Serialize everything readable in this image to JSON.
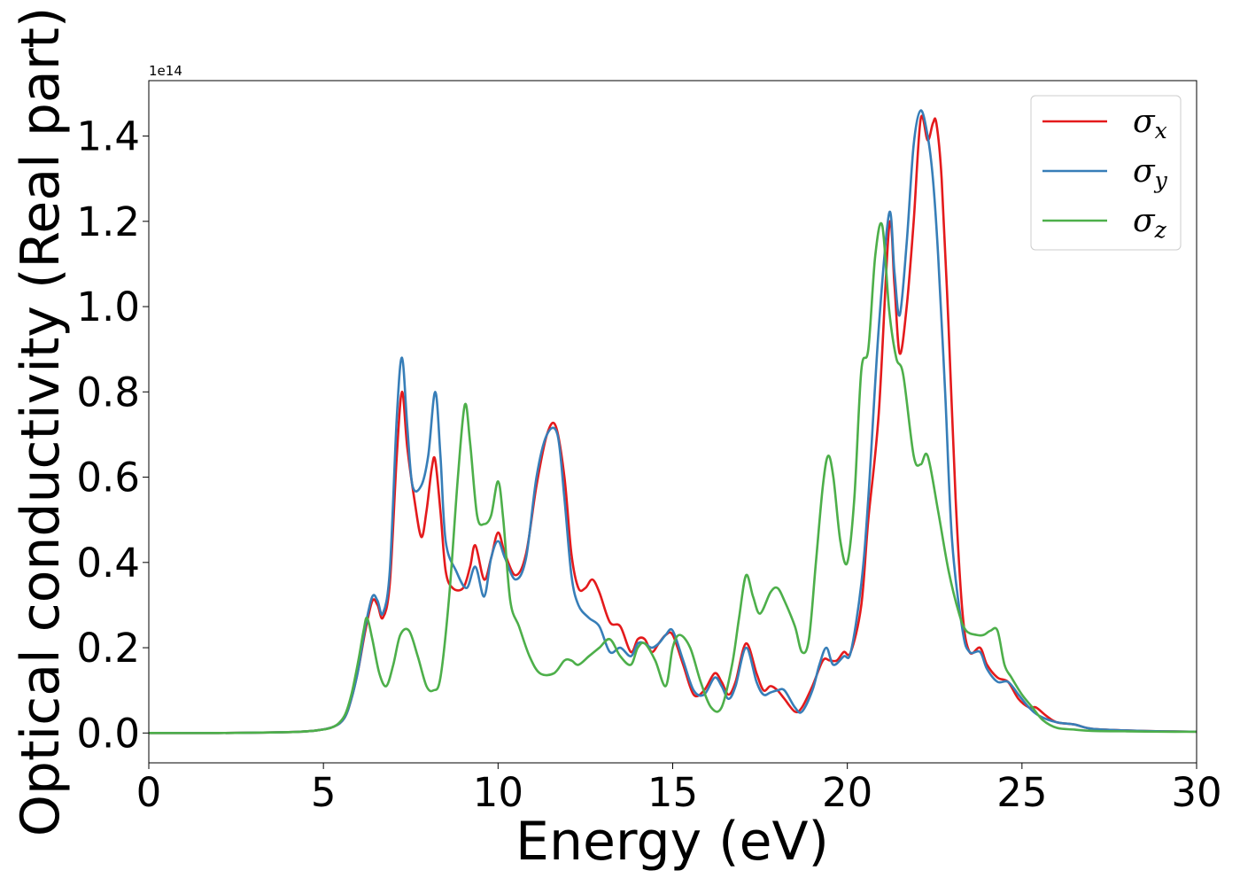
{
  "chart_data": {
    "type": "line",
    "xlabel": "Energy (eV)",
    "ylabel": "Optical conductivity (Real part)",
    "y_offset_text": "1e14",
    "xlim": [
      0,
      30
    ],
    "ylim": [
      -0.07,
      1.53
    ],
    "y_scale_factor": 100000000000000.0,
    "grid": false,
    "legend_position": "top-right",
    "x_ticks": [
      0,
      5,
      10,
      15,
      20,
      25,
      30
    ],
    "x_tick_labels": [
      "0",
      "5",
      "10",
      "15",
      "20",
      "25",
      "30"
    ],
    "y_ticks": [
      0.0,
      0.2,
      0.4,
      0.6,
      0.8,
      1.0,
      1.2,
      1.4
    ],
    "y_tick_labels": [
      "0.0",
      "0.2",
      "0.4",
      "0.6",
      "0.8",
      "1.0",
      "1.2",
      "1.4"
    ],
    "series": [
      {
        "name": "σx",
        "legend_base": "σ",
        "legend_sub": "x",
        "color": "#e41a1c",
        "x": [
          0,
          2,
          4,
          4.8,
          5.3,
          5.6,
          5.8,
          6.0,
          6.2,
          6.4,
          6.55,
          6.7,
          6.9,
          7.1,
          7.25,
          7.4,
          7.6,
          7.8,
          7.95,
          8.1,
          8.2,
          8.35,
          8.5,
          8.7,
          9.0,
          9.2,
          9.35,
          9.6,
          9.8,
          10.0,
          10.2,
          10.5,
          10.8,
          11.1,
          11.4,
          11.65,
          11.9,
          12.1,
          12.3,
          12.5,
          12.7,
          12.9,
          13.2,
          13.5,
          13.8,
          14.0,
          14.2,
          14.4,
          14.6,
          14.8,
          15.0,
          15.3,
          15.6,
          15.9,
          16.2,
          16.4,
          16.6,
          16.8,
          17.1,
          17.4,
          17.6,
          17.8,
          18.0,
          18.2,
          18.5,
          18.7,
          19.0,
          19.3,
          19.5,
          19.7,
          19.9,
          20.1,
          20.4,
          20.6,
          20.9,
          21.2,
          21.35,
          21.5,
          21.7,
          21.9,
          22.1,
          22.3,
          22.45,
          22.55,
          22.7,
          22.9,
          23.1,
          23.3,
          23.5,
          23.8,
          24.0,
          24.3,
          24.6,
          24.9,
          25.2,
          25.4,
          25.7,
          26.0,
          26.5,
          27.0,
          28.0,
          29.0,
          30.0
        ],
        "y": [
          0,
          0,
          0.002,
          0.006,
          0.015,
          0.035,
          0.08,
          0.15,
          0.24,
          0.31,
          0.3,
          0.27,
          0.35,
          0.65,
          0.8,
          0.67,
          0.55,
          0.46,
          0.52,
          0.62,
          0.64,
          0.52,
          0.38,
          0.34,
          0.34,
          0.39,
          0.44,
          0.36,
          0.41,
          0.47,
          0.42,
          0.37,
          0.42,
          0.58,
          0.7,
          0.72,
          0.6,
          0.42,
          0.34,
          0.34,
          0.36,
          0.33,
          0.26,
          0.25,
          0.19,
          0.22,
          0.22,
          0.19,
          0.21,
          0.23,
          0.23,
          0.16,
          0.09,
          0.1,
          0.14,
          0.12,
          0.09,
          0.12,
          0.21,
          0.14,
          0.1,
          0.11,
          0.1,
          0.08,
          0.05,
          0.06,
          0.11,
          0.17,
          0.17,
          0.17,
          0.19,
          0.19,
          0.3,
          0.5,
          0.75,
          1.19,
          1.05,
          0.89,
          1.0,
          1.2,
          1.44,
          1.39,
          1.43,
          1.43,
          1.3,
          0.95,
          0.55,
          0.28,
          0.19,
          0.2,
          0.16,
          0.13,
          0.12,
          0.08,
          0.06,
          0.06,
          0.04,
          0.025,
          0.02,
          0.01,
          0.006,
          0.004,
          0.003
        ]
      },
      {
        "name": "σy",
        "legend_base": "σ",
        "legend_sub": "y",
        "color": "#377eb8",
        "x": [
          0,
          2,
          4,
          4.8,
          5.3,
          5.6,
          5.8,
          6.0,
          6.2,
          6.4,
          6.55,
          6.7,
          6.9,
          7.1,
          7.25,
          7.4,
          7.55,
          7.8,
          8.0,
          8.2,
          8.35,
          8.5,
          8.8,
          9.1,
          9.35,
          9.6,
          9.8,
          10.0,
          10.2,
          10.5,
          10.8,
          11.1,
          11.4,
          11.7,
          11.9,
          12.1,
          12.3,
          12.6,
          12.9,
          13.2,
          13.5,
          13.8,
          14.0,
          14.2,
          14.4,
          14.6,
          14.8,
          15.0,
          15.3,
          15.6,
          15.9,
          16.2,
          16.4,
          16.6,
          16.8,
          17.1,
          17.4,
          17.6,
          17.8,
          18.0,
          18.2,
          18.5,
          18.7,
          19.0,
          19.2,
          19.4,
          19.6,
          19.9,
          20.1,
          20.4,
          20.6,
          20.9,
          21.2,
          21.35,
          21.5,
          21.7,
          21.9,
          22.1,
          22.3,
          22.45,
          22.6,
          22.8,
          23.0,
          23.3,
          23.5,
          23.8,
          24.0,
          24.3,
          24.6,
          24.9,
          25.2,
          25.5,
          26.0,
          26.5,
          27.0,
          28.0,
          29.0,
          30.0
        ],
        "y": [
          0,
          0,
          0.002,
          0.006,
          0.015,
          0.035,
          0.08,
          0.15,
          0.25,
          0.32,
          0.31,
          0.28,
          0.38,
          0.74,
          0.88,
          0.72,
          0.58,
          0.58,
          0.65,
          0.8,
          0.65,
          0.45,
          0.38,
          0.34,
          0.39,
          0.32,
          0.41,
          0.45,
          0.41,
          0.36,
          0.41,
          0.6,
          0.7,
          0.7,
          0.55,
          0.37,
          0.3,
          0.27,
          0.25,
          0.19,
          0.2,
          0.18,
          0.21,
          0.21,
          0.2,
          0.21,
          0.23,
          0.24,
          0.17,
          0.1,
          0.09,
          0.13,
          0.11,
          0.08,
          0.11,
          0.2,
          0.12,
          0.09,
          0.095,
          0.1,
          0.1,
          0.06,
          0.05,
          0.1,
          0.16,
          0.2,
          0.16,
          0.18,
          0.19,
          0.35,
          0.55,
          0.95,
          1.22,
          1.08,
          0.98,
          1.15,
          1.38,
          1.46,
          1.4,
          1.3,
          1.12,
          0.8,
          0.45,
          0.24,
          0.19,
          0.19,
          0.15,
          0.12,
          0.12,
          0.09,
          0.06,
          0.04,
          0.025,
          0.02,
          0.01,
          0.006,
          0.004,
          0.003
        ]
      },
      {
        "name": "σz",
        "legend_base": "σ",
        "legend_sub": "z",
        "color": "#4daf4a",
        "x": [
          0,
          2,
          4,
          4.8,
          5.3,
          5.6,
          5.8,
          6.0,
          6.15,
          6.25,
          6.4,
          6.6,
          6.8,
          7.0,
          7.2,
          7.45,
          7.7,
          7.95,
          8.15,
          8.35,
          8.6,
          8.85,
          9.05,
          9.2,
          9.4,
          9.6,
          9.8,
          10.0,
          10.15,
          10.35,
          10.6,
          10.9,
          11.2,
          11.6,
          11.9,
          12.1,
          12.3,
          12.6,
          12.9,
          13.2,
          13.5,
          13.8,
          14.0,
          14.2,
          14.5,
          14.8,
          15.0,
          15.2,
          15.5,
          15.8,
          16.1,
          16.4,
          16.7,
          16.9,
          17.1,
          17.3,
          17.5,
          17.8,
          18.0,
          18.2,
          18.5,
          18.7,
          18.9,
          19.1,
          19.3,
          19.45,
          19.6,
          19.8,
          20.0,
          20.2,
          20.4,
          20.6,
          20.8,
          21.0,
          21.2,
          21.4,
          21.6,
          21.9,
          22.1,
          22.3,
          22.6,
          22.9,
          23.2,
          23.4,
          23.7,
          23.9,
          24.1,
          24.3,
          24.5,
          24.7,
          25.0,
          25.3,
          25.6,
          26.0,
          26.5,
          27.0,
          28.0,
          29.0,
          30.0
        ],
        "y": [
          0,
          0,
          0.002,
          0.006,
          0.015,
          0.04,
          0.09,
          0.17,
          0.24,
          0.27,
          0.22,
          0.14,
          0.11,
          0.16,
          0.23,
          0.24,
          0.18,
          0.11,
          0.1,
          0.13,
          0.32,
          0.6,
          0.77,
          0.68,
          0.51,
          0.49,
          0.51,
          0.59,
          0.5,
          0.31,
          0.25,
          0.18,
          0.14,
          0.14,
          0.17,
          0.17,
          0.16,
          0.18,
          0.2,
          0.22,
          0.18,
          0.16,
          0.2,
          0.21,
          0.17,
          0.11,
          0.2,
          0.23,
          0.2,
          0.12,
          0.06,
          0.06,
          0.16,
          0.27,
          0.37,
          0.32,
          0.28,
          0.33,
          0.34,
          0.31,
          0.25,
          0.19,
          0.22,
          0.4,
          0.58,
          0.65,
          0.6,
          0.45,
          0.4,
          0.55,
          0.85,
          0.9,
          1.12,
          1.19,
          0.99,
          0.88,
          0.84,
          0.65,
          0.63,
          0.65,
          0.52,
          0.38,
          0.28,
          0.24,
          0.23,
          0.23,
          0.24,
          0.24,
          0.16,
          0.13,
          0.09,
          0.06,
          0.03,
          0.012,
          0.008,
          0.005,
          0.004,
          0.003,
          0.003
        ]
      }
    ]
  }
}
